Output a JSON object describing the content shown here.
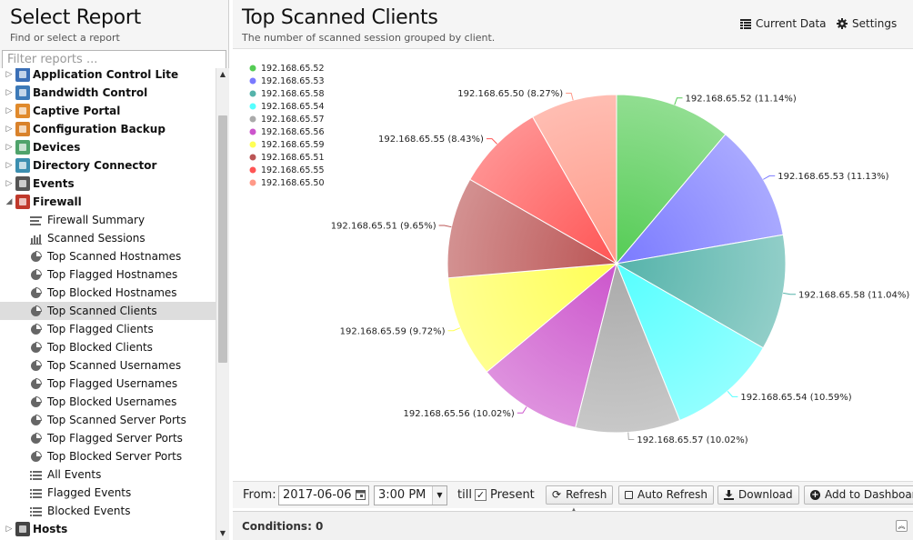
{
  "sidebar": {
    "title": "Select Report",
    "subtitle": "Find or select a report",
    "filter_placeholder": "Filter reports ...",
    "categories_before": [
      {
        "label": "Application Control Lite",
        "icon": "app-control-icon",
        "color": "#3b6fb6"
      },
      {
        "label": "Bandwidth Control",
        "icon": "bandwidth-icon",
        "color": "#3d7ab8"
      },
      {
        "label": "Captive Portal",
        "icon": "captive-portal-icon",
        "color": "#e08a2c"
      },
      {
        "label": "Configuration Backup",
        "icon": "config-backup-icon",
        "color": "#d9822b"
      },
      {
        "label": "Devices",
        "icon": "devices-icon",
        "color": "#4fa36b"
      },
      {
        "label": "Directory Connector",
        "icon": "directory-icon",
        "color": "#3c8fb0"
      },
      {
        "label": "Events",
        "icon": "events-icon",
        "color": "#555555"
      }
    ],
    "open_category": {
      "label": "Firewall",
      "icon": "firewall-icon",
      "color": "#c0392b"
    },
    "leaves": [
      {
        "label": "Firewall Summary",
        "icon": "text-lines-icon"
      },
      {
        "label": "Scanned Sessions",
        "icon": "bar-chart-icon"
      },
      {
        "label": "Top Scanned Hostnames",
        "icon": "pie-chart-icon"
      },
      {
        "label": "Top Flagged Hostnames",
        "icon": "pie-chart-icon"
      },
      {
        "label": "Top Blocked Hostnames",
        "icon": "pie-chart-icon"
      },
      {
        "label": "Top Scanned Clients",
        "icon": "pie-chart-icon",
        "selected": true
      },
      {
        "label": "Top Flagged Clients",
        "icon": "pie-chart-icon"
      },
      {
        "label": "Top Blocked Clients",
        "icon": "pie-chart-icon"
      },
      {
        "label": "Top Scanned Usernames",
        "icon": "pie-chart-icon"
      },
      {
        "label": "Top Flagged Usernames",
        "icon": "pie-chart-icon"
      },
      {
        "label": "Top Blocked Usernames",
        "icon": "pie-chart-icon"
      },
      {
        "label": "Top Scanned Server Ports",
        "icon": "pie-chart-icon"
      },
      {
        "label": "Top Flagged Server Ports",
        "icon": "pie-chart-icon"
      },
      {
        "label": "Top Blocked Server Ports",
        "icon": "pie-chart-icon"
      },
      {
        "label": "All Events",
        "icon": "list-icon"
      },
      {
        "label": "Flagged Events",
        "icon": "list-icon"
      },
      {
        "label": "Blocked Events",
        "icon": "list-icon"
      }
    ],
    "categories_after": [
      {
        "label": "Hosts",
        "icon": "hosts-icon",
        "color": "#444444"
      }
    ]
  },
  "header": {
    "title": "Top Scanned Clients",
    "description": "The number of scanned session grouped by client.",
    "current_data_label": "Current Data",
    "settings_label": "Settings"
  },
  "toolbar": {
    "from_label": "From:",
    "date": "2017-06-06",
    "time": "3:00 PM",
    "till_label": "till",
    "present_label": "Present",
    "present_checked": true,
    "refresh_label": "Refresh",
    "auto_refresh_label": "Auto Refresh",
    "download_label": "Download",
    "add_dashboard_label": "Add to Dashboard"
  },
  "conditions": {
    "label": "Conditions: 0"
  },
  "chart_data": {
    "type": "pie",
    "title": "",
    "legend_position": "top-left",
    "slices": [
      {
        "name": "192.168.65.52",
        "percent": 11.14,
        "label": "192.168.65.52 (11.14%)",
        "color": "#55cc55"
      },
      {
        "name": "192.168.65.53",
        "percent": 11.13,
        "label": "192.168.65.53 (11.13%)",
        "color": "#7a7aff"
      },
      {
        "name": "192.168.65.58",
        "percent": 11.04,
        "label": "192.168.65.58 (11.04%)",
        "color": "#55b3aa"
      },
      {
        "name": "192.168.65.54",
        "percent": 10.59,
        "label": "192.168.65.54 (10.59%)",
        "color": "#55ffff"
      },
      {
        "name": "192.168.65.57",
        "percent": 10.02,
        "label": "192.168.65.57 (10.02%)",
        "color": "#aaaaaa"
      },
      {
        "name": "192.168.65.56",
        "percent": 10.02,
        "label": "192.168.65.56 (10.02%)",
        "color": "#cc55cc"
      },
      {
        "name": "192.168.65.59",
        "percent": 9.72,
        "label": "192.168.65.59 (9.72%)",
        "color": "#ffff55"
      },
      {
        "name": "192.168.65.51",
        "percent": 9.65,
        "label": "192.168.65.51 (9.65%)",
        "color": "#bb5555"
      },
      {
        "name": "192.168.65.55",
        "percent": 8.43,
        "label": "192.168.65.55 (8.43%)",
        "color": "#ff5555"
      },
      {
        "name": "192.168.65.50",
        "percent": 8.27,
        "label": "192.168.65.50 (8.27%)",
        "color": "#ff9988"
      }
    ]
  }
}
